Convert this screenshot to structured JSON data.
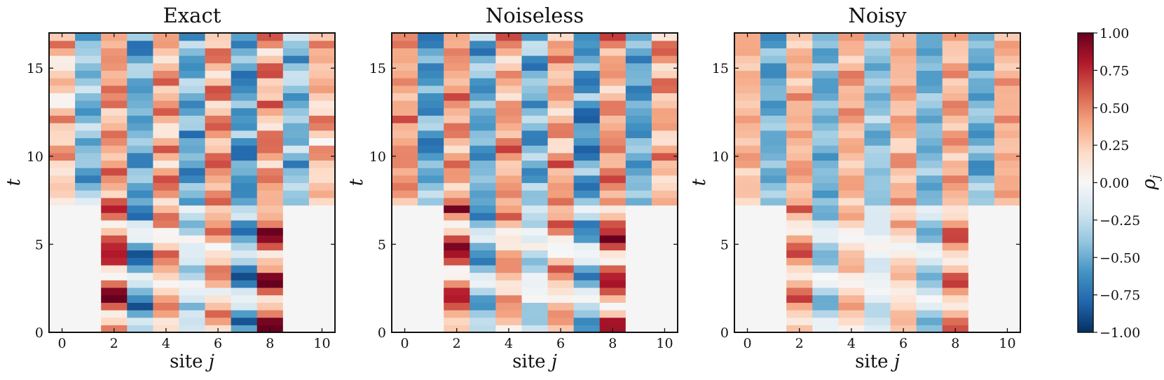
{
  "chart_data": [
    {
      "type": "heatmap",
      "title": "Exact",
      "xlabel": "site j",
      "ylabel": "t",
      "x_ticks": [
        "0",
        "2",
        "4",
        "6",
        "8",
        "10"
      ],
      "y_ticks": [
        "0",
        "5",
        "10",
        "15"
      ],
      "xlim": [
        -0.5,
        10.5
      ],
      "ylim": [
        0,
        17
      ],
      "sites": [
        0,
        1,
        2,
        3,
        4,
        5,
        6,
        7,
        8,
        9,
        10
      ],
      "t_step": 0.425,
      "rows": 40,
      "initial_filled_sites": [
        2,
        3,
        4,
        5,
        6,
        7,
        8
      ],
      "outer_sites_enter_at_t": 7.3,
      "amplitude": 1.0,
      "noise_damping": 0.0,
      "site_mean_after_entry": [
        0.3,
        -0.45,
        0.4,
        -0.55,
        0.4,
        -0.5,
        0.4,
        -0.55,
        0.4,
        -0.45,
        0.3
      ]
    },
    {
      "type": "heatmap",
      "title": "Noiseless",
      "xlabel": "site j",
      "ylabel": "t",
      "x_ticks": [
        "0",
        "2",
        "4",
        "6",
        "8",
        "10"
      ],
      "y_ticks": [
        "0",
        "5",
        "10",
        "15"
      ],
      "xlim": [
        -0.5,
        10.5
      ],
      "ylim": [
        0,
        17
      ],
      "sites": [
        0,
        1,
        2,
        3,
        4,
        5,
        6,
        7,
        8,
        9,
        10
      ],
      "t_step": 0.425,
      "rows": 40,
      "initial_filled_sites": [
        2,
        3,
        4,
        5,
        6,
        7,
        8
      ],
      "outer_sites_enter_at_t": 7.3,
      "amplitude": 0.95,
      "noise_damping": 0.05,
      "site_mean_after_entry": [
        0.4,
        -0.55,
        0.4,
        -0.5,
        0.4,
        -0.45,
        0.4,
        -0.55,
        0.4,
        -0.55,
        0.35
      ]
    },
    {
      "type": "heatmap",
      "title": "Noisy",
      "xlabel": "site j",
      "ylabel": "t",
      "x_ticks": [
        "0",
        "2",
        "4",
        "6",
        "8",
        "10"
      ],
      "y_ticks": [
        "0",
        "5",
        "10",
        "15"
      ],
      "xlim": [
        -0.5,
        10.5
      ],
      "ylim": [
        0,
        17
      ],
      "sites": [
        0,
        1,
        2,
        3,
        4,
        5,
        6,
        7,
        8,
        9,
        10
      ],
      "t_step": 0.425,
      "rows": 40,
      "initial_filled_sites": [
        2,
        3,
        4,
        5,
        6,
        7,
        8
      ],
      "outer_sites_enter_at_t": 7.3,
      "amplitude": 0.8,
      "noise_damping": 0.45,
      "site_mean_after_entry": [
        0.35,
        -0.5,
        0.35,
        -0.45,
        0.35,
        -0.4,
        0.35,
        -0.45,
        0.35,
        -0.5,
        0.35
      ]
    }
  ],
  "colorbar": {
    "label": "ρ_j",
    "label_main": "ρ",
    "label_sub": "j",
    "vmin": -1.0,
    "vmax": 1.0,
    "ticks": [
      "1.00",
      "0.75",
      "0.50",
      "0.25",
      "0.00",
      "−0.25",
      "−0.50",
      "−0.75",
      "−1.00"
    ],
    "tick_values": [
      1.0,
      0.75,
      0.5,
      0.25,
      0.0,
      -0.25,
      -0.5,
      -0.75,
      -1.0
    ],
    "colormap": "RdBu_r",
    "stops": [
      "#053061",
      "#2166ac",
      "#4393c3",
      "#92c5de",
      "#d1e5f0",
      "#f7f7f7",
      "#fddbc7",
      "#f4a582",
      "#d6604d",
      "#b2182b",
      "#67001f"
    ]
  },
  "empty_cell_color": "#f5f5f5"
}
